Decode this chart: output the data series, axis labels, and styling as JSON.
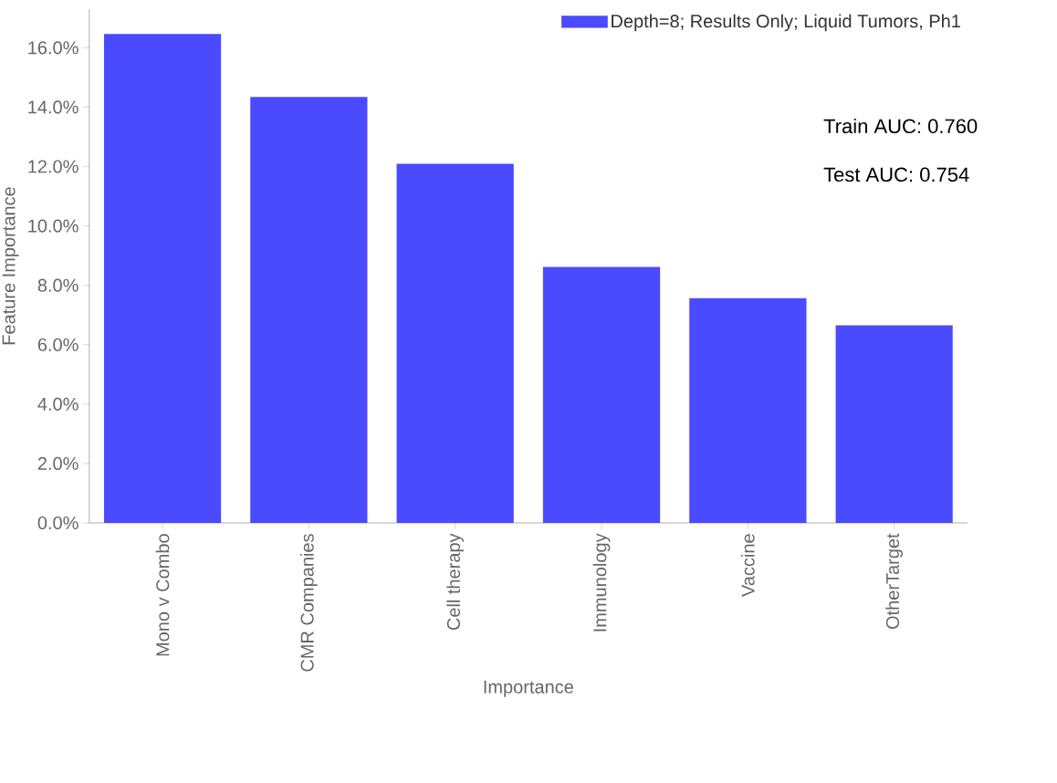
{
  "chart_data": {
    "type": "bar",
    "xlabel": "Importance",
    "ylabel": "Feature Importance",
    "categories": [
      "Mono v Combo",
      "CMR Companies",
      "Cell therapy",
      "Immunology",
      "Vaccine",
      "OtherTarget"
    ],
    "series": [
      {
        "name": "Depth=8; Results Only; Liquid Tumors, Ph1",
        "color": "#4a4aff",
        "values": [
          16.46,
          14.34,
          12.09,
          8.62,
          7.57,
          6.65
        ]
      }
    ],
    "ylim": [
      0,
      17.3
    ],
    "yticks": [
      {
        "value": 0,
        "label": "0.0%"
      },
      {
        "value": 2,
        "label": "2.0%"
      },
      {
        "value": 4,
        "label": "4.0%"
      },
      {
        "value": 6,
        "label": "6.0%"
      },
      {
        "value": 8,
        "label": "8.0%"
      },
      {
        "value": 10,
        "label": "10.0%"
      },
      {
        "value": 12,
        "label": "12.0%"
      },
      {
        "value": 14,
        "label": "14.0%"
      },
      {
        "value": 16,
        "label": "16.0%"
      }
    ],
    "legend": "top right",
    "grid": false,
    "annotations": [
      "Train AUC:  0.760",
      "Test  AUC:  0.754"
    ]
  }
}
